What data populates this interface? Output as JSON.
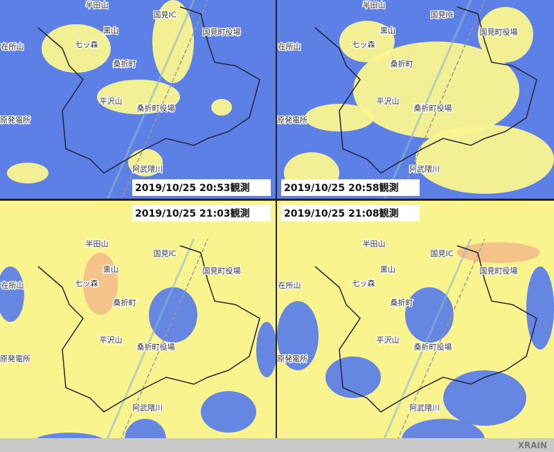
{
  "panels": [
    {
      "timestamp": "2019/10/25 20:53観測"
    },
    {
      "timestamp": "2019/10/25 20:58観測"
    },
    {
      "timestamp": "2019/10/25 21:03観測"
    },
    {
      "timestamp": "2019/10/25 21:08観測"
    }
  ],
  "places": [
    "半田山",
    "国見IC",
    "国見町役場",
    "黒山",
    "七ッ森",
    "桑折町",
    "桑折町役場",
    "平沢山",
    "原発電所",
    "在所山",
    "阿武隈川"
  ],
  "footer": {
    "logo": "XRAIN"
  }
}
